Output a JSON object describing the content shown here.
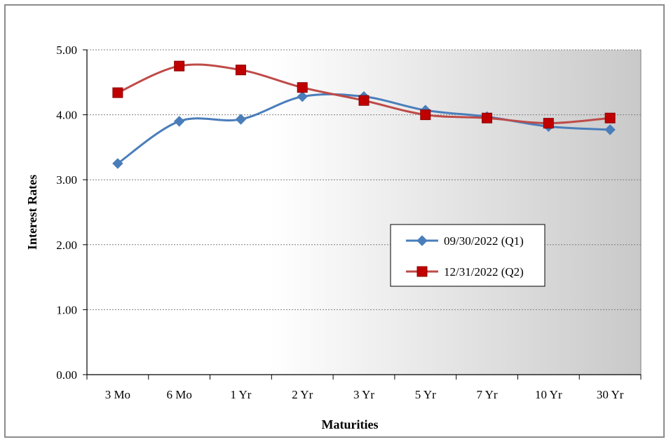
{
  "chart_data": {
    "type": "line",
    "categories": [
      "3 Mo",
      "6 Mo",
      "1 Yr",
      "2 Yr",
      "3 Yr",
      "5 Yr",
      "7 Yr",
      "10 Yr",
      "30 Yr"
    ],
    "series": [
      {
        "name": "09/30/2022 (Q1)",
        "color": "#4a7ebb",
        "marker": "diamond",
        "values": [
          3.25,
          3.9,
          3.93,
          4.28,
          4.28,
          4.07,
          3.97,
          3.82,
          3.77
        ]
      },
      {
        "name": "12/31/2022 (Q2)",
        "color": "#be4b48",
        "marker": "square",
        "values": [
          4.34,
          4.75,
          4.69,
          4.42,
          4.22,
          4.0,
          3.95,
          3.87,
          3.95
        ]
      }
    ],
    "title": "",
    "xlabel": "Maturities",
    "ylabel": "Interest Rates",
    "ylim": [
      0,
      5
    ],
    "yticks": [
      "0.00",
      "1.00",
      "2.00",
      "3.00",
      "4.00",
      "5.00"
    ],
    "grid": true,
    "legend_position": "right-center"
  }
}
